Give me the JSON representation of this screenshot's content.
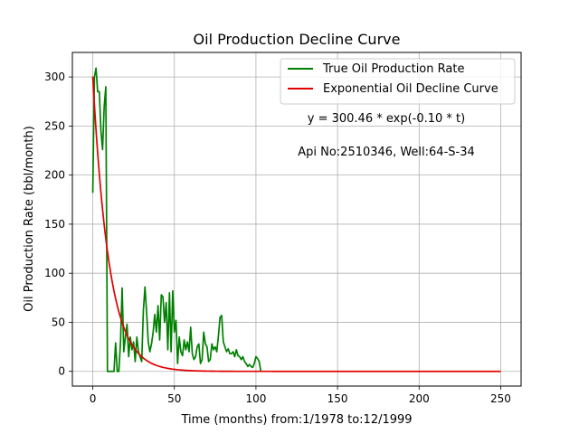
{
  "chart_data": {
    "type": "line",
    "title": "Oil Production Decline Curve",
    "xlabel": "Time (months) from:1/1978 to:12/1999",
    "ylabel": "Oil Production Rate (bbl/month)",
    "xlim": [
      -12.5,
      262.5
    ],
    "ylim": [
      -15,
      325
    ],
    "xticks": [
      0,
      50,
      100,
      150,
      200,
      250
    ],
    "yticks": [
      0,
      50,
      100,
      150,
      200,
      250,
      300
    ],
    "grid": true,
    "legend_position": "top-right",
    "annotations": [
      "y = 300.46 * exp(-0.10 * t)",
      "Api No:2510346, Well:64-S-34"
    ],
    "series": [
      {
        "name": "True Oil Production Rate",
        "color": "#008000",
        "kind": "observed",
        "x": [
          0,
          1,
          2,
          3,
          4,
          5,
          6,
          7,
          8,
          9,
          10,
          11,
          12,
          13,
          14,
          15,
          16,
          17,
          18,
          19,
          20,
          21,
          22,
          23,
          24,
          25,
          26,
          27,
          28,
          29,
          30,
          31,
          32,
          33,
          34,
          35,
          36,
          37,
          38,
          39,
          40,
          41,
          42,
          43,
          44,
          45,
          46,
          47,
          48,
          49,
          50,
          51,
          52,
          53,
          54,
          55,
          56,
          57,
          58,
          59,
          60,
          61,
          62,
          63,
          64,
          65,
          66,
          67,
          68,
          69,
          70,
          71,
          72,
          73,
          74,
          75,
          76,
          77,
          78,
          79,
          80,
          81,
          82,
          83,
          84,
          85,
          86,
          87,
          88,
          89,
          90,
          91,
          92,
          93,
          94,
          95,
          96,
          97,
          98,
          99,
          100,
          101,
          102,
          103
        ],
        "y": [
          182,
          300,
          309,
          285,
          285,
          245,
          226,
          270,
          290,
          0,
          0,
          0,
          0,
          0,
          29,
          0,
          0,
          30,
          85,
          20,
          35,
          48,
          15,
          35,
          22,
          30,
          10,
          35,
          20,
          15,
          10,
          62,
          86,
          60,
          30,
          20,
          28,
          40,
          58,
          40,
          67,
          32,
          78,
          76,
          50,
          70,
          22,
          80,
          20,
          82,
          40,
          52,
          8,
          35,
          20,
          16,
          32,
          22,
          30,
          20,
          45,
          18,
          12,
          15,
          25,
          28,
          8,
          12,
          40,
          28,
          25,
          10,
          12,
          28,
          22,
          25,
          20,
          36,
          55,
          57,
          30,
          25,
          20,
          23,
          18,
          18,
          20,
          15,
          22,
          16,
          15,
          12,
          15,
          10,
          8,
          5,
          7,
          5,
          4,
          8,
          15,
          13,
          10,
          0
        ]
      },
      {
        "name": "Exponential Oil Decline Curve",
        "color": "#e00000",
        "kind": "exponential",
        "qi": 300.46,
        "di": 0.1,
        "t_start": 0,
        "t_end": 250
      }
    ]
  }
}
